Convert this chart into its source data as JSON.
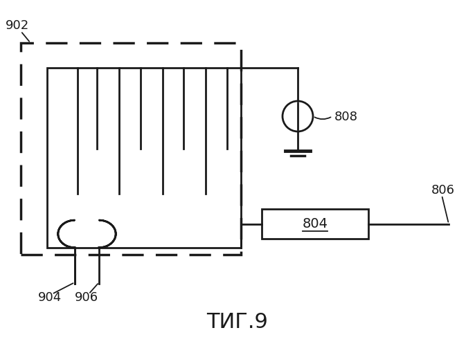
{
  "bg_color": "#ffffff",
  "line_color": "#1a1a1a",
  "title": "ΤИГ.9",
  "label_902": "902",
  "label_904": "904",
  "label_906": "906",
  "label_808": "808",
  "label_804": "804",
  "label_806": "806",
  "fig_width": 6.86,
  "fig_height": 5.0,
  "dpi": 100
}
